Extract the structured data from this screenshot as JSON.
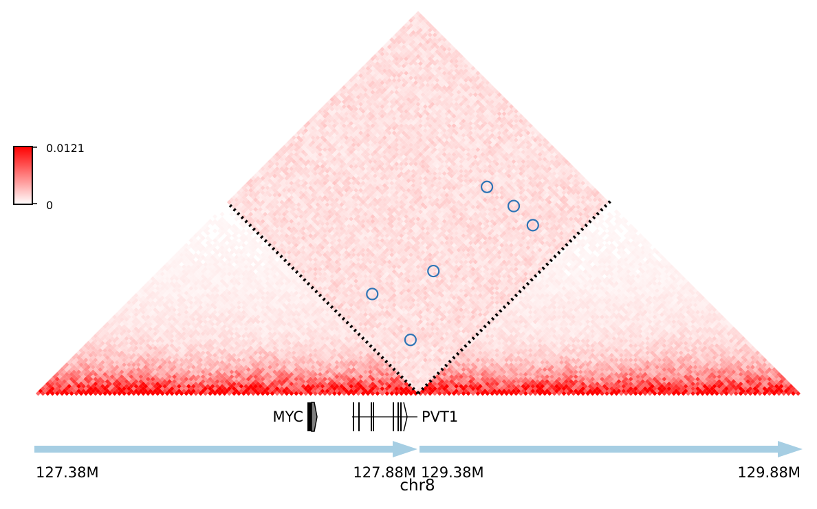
{
  "chart_data": {
    "type": "heatmap",
    "title": "",
    "chromosome_label": "chr8",
    "colorbar": {
      "max_label": "0.0121",
      "min_label": "0",
      "max_value": 0.0121,
      "min_value": 0,
      "color_low": "#ffffff",
      "color_high": "#ff0000",
      "placement": "left"
    },
    "segments": [
      {
        "start_label": "127.38M",
        "end_label": "127.88M",
        "start": 127.38,
        "end": 127.88
      },
      {
        "start_label": "129.38M",
        "end_label": "129.88M",
        "start": 129.38,
        "end": 129.88
      }
    ],
    "tick_labels": [
      "127.38M",
      "127.88M",
      "129.38M",
      "129.88M"
    ],
    "genes": [
      {
        "name": "MYC",
        "strand": "+",
        "position": 127.736,
        "color": "#7f7f7f"
      },
      {
        "name": "PVT1",
        "strand": "+",
        "position": 127.8,
        "exons": [
          127.795,
          127.8,
          127.812,
          127.823,
          127.856,
          127.863,
          127.867
        ]
      }
    ],
    "boundary_marker": "dotted lines from segment junction",
    "highlighted_loops": [
      {
        "x": 127.69,
        "y": 129.45
      },
      {
        "x": 127.8,
        "y": 129.44
      },
      {
        "x": 127.74,
        "y": 129.56
      },
      {
        "x": 127.7,
        "y": 129.74
      },
      {
        "x": 127.76,
        "y": 129.75
      },
      {
        "x": 127.81,
        "y": 129.75
      }
    ],
    "loop_marker_color": "#2e75b6",
    "arrow_color": "#a6cee3"
  }
}
